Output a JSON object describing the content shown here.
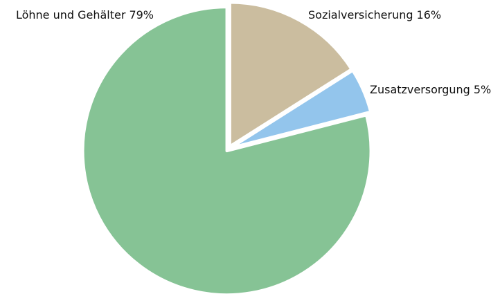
{
  "chart_data": {
    "type": "pie",
    "categories": [
      "Sozialversicherung",
      "Zusatzversorgung",
      "Löhne und Gehälter"
    ],
    "values": [
      16,
      5,
      79
    ],
    "value_labels": [
      "16%",
      "5%",
      "79%"
    ],
    "colors": [
      "#cbbd9f",
      "#93c5ec",
      "#86c395"
    ]
  }
}
